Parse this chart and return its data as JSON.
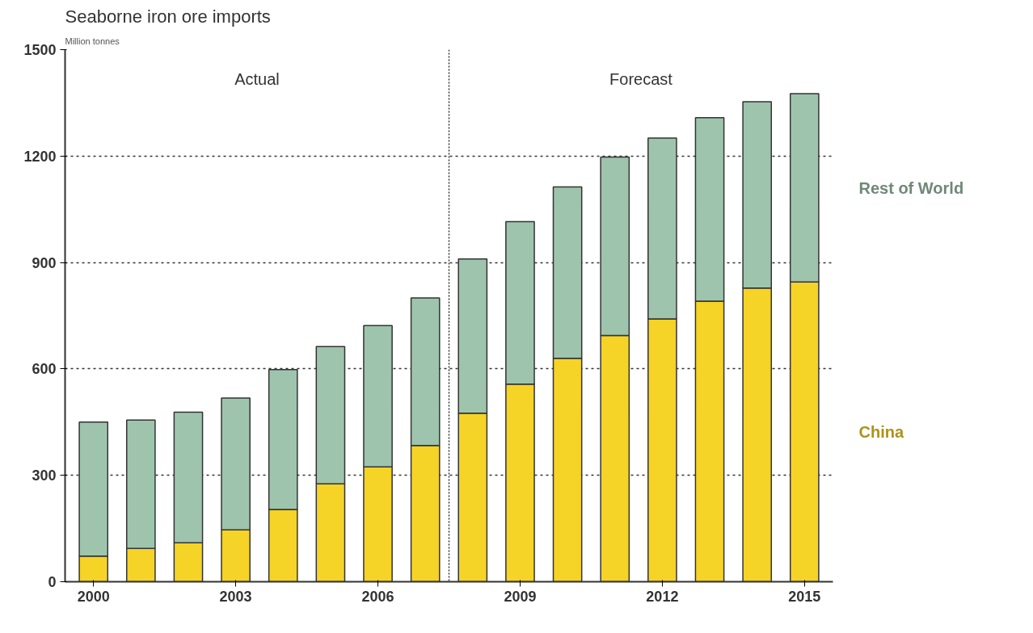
{
  "chart_data": {
    "type": "bar",
    "title": "Seaborne iron ore imports",
    "subtitle": "Million tonnes",
    "x": [
      2000,
      2001,
      2002,
      2003,
      2004,
      2005,
      2006,
      2007,
      2008,
      2009,
      2010,
      2011,
      2012,
      2013,
      2014,
      2015
    ],
    "stacked": true,
    "series": [
      {
        "name": "China",
        "color": "#f5d327",
        "values": [
          72,
          94,
          110,
          146,
          204,
          276,
          324,
          384,
          475,
          557,
          630,
          694,
          741,
          791,
          828,
          845
        ]
      },
      {
        "name": "Rest of World",
        "color": "#9fc4ae",
        "values": [
          378,
          362,
          368,
          372,
          394,
          387,
          398,
          416,
          435,
          458,
          483,
          503,
          510,
          517,
          525,
          531
        ]
      }
    ],
    "xlim": [
      1999.4,
      2015.6
    ],
    "xticks": [
      2000,
      2003,
      2006,
      2009,
      2012,
      2015
    ],
    "ylim": [
      0,
      1500
    ],
    "yticks": [
      0,
      300,
      600,
      900,
      1200,
      1500
    ],
    "grid": "y",
    "ref_lines": [
      {
        "axis": "x",
        "value": 2007.5,
        "label": null
      }
    ],
    "annotations": [
      "Actual",
      "Forecast"
    ]
  }
}
